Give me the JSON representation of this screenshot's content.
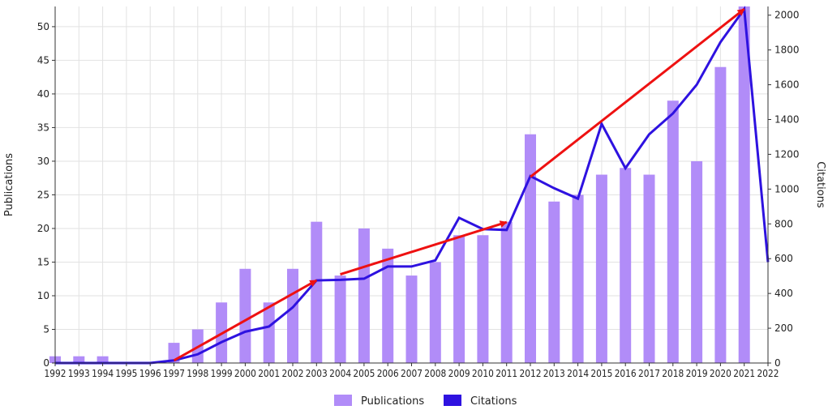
{
  "colors": {
    "publications_bar": "#b18cf8",
    "citations_line": "#2e12e0",
    "trend_arrow": "#ee1111",
    "grid": "#e2e2e2",
    "axis": "#333333"
  },
  "chart_data": {
    "type": "bar",
    "categories": [
      "1992",
      "1993",
      "1994",
      "1995",
      "1996",
      "1997",
      "1998",
      "1999",
      "2000",
      "2001",
      "2002",
      "2003",
      "2004",
      "2005",
      "2006",
      "2007",
      "2008",
      "2009",
      "2010",
      "2011",
      "2012",
      "2013",
      "2014",
      "2015",
      "2016",
      "2017",
      "2018",
      "2019",
      "2020",
      "2021",
      "2022"
    ],
    "series": [
      {
        "name": "Publications",
        "type": "bar",
        "axis": "left",
        "values": [
          1,
          1,
          1,
          0,
          0,
          3,
          5,
          9,
          14,
          9,
          14,
          21,
          13,
          20,
          17,
          13,
          15,
          19,
          19,
          21,
          34,
          24,
          25,
          28,
          29,
          28,
          39,
          30,
          44,
          53,
          0
        ]
      },
      {
        "name": "Citations",
        "type": "line",
        "axis": "right",
        "values": [
          0,
          0,
          0,
          0,
          0,
          15,
          50,
          120,
          180,
          210,
          320,
          475,
          478,
          485,
          555,
          555,
          590,
          835,
          770,
          765,
          1075,
          1005,
          945,
          1375,
          1120,
          1315,
          1435,
          1600,
          1845,
          2035,
          580
        ]
      }
    ],
    "trend_arrows": [
      {
        "from": {
          "x": "1997",
          "y": 15
        },
        "to": {
          "x": "2003",
          "y": 475
        }
      },
      {
        "from": {
          "x": "2004",
          "y": 510
        },
        "to": {
          "x": "2011",
          "y": 810
        }
      },
      {
        "from": {
          "x": "2012",
          "y": 1070
        },
        "to": {
          "x": "2021",
          "y": 2035
        }
      }
    ],
    "title": "",
    "xlabel": "",
    "ylabel": "Publications",
    "y2label": "Citations",
    "ylim": [
      0,
      53
    ],
    "y2lim": [
      0,
      2050
    ],
    "yticks": [
      0,
      5,
      10,
      15,
      20,
      25,
      30,
      35,
      40,
      45,
      50
    ],
    "y2ticks": [
      0,
      200,
      400,
      600,
      800,
      1000,
      1200,
      1400,
      1600,
      1800,
      2000
    ],
    "grid": true,
    "legend": {
      "position": "bottom",
      "entries": [
        "Publications",
        "Citations"
      ]
    }
  }
}
